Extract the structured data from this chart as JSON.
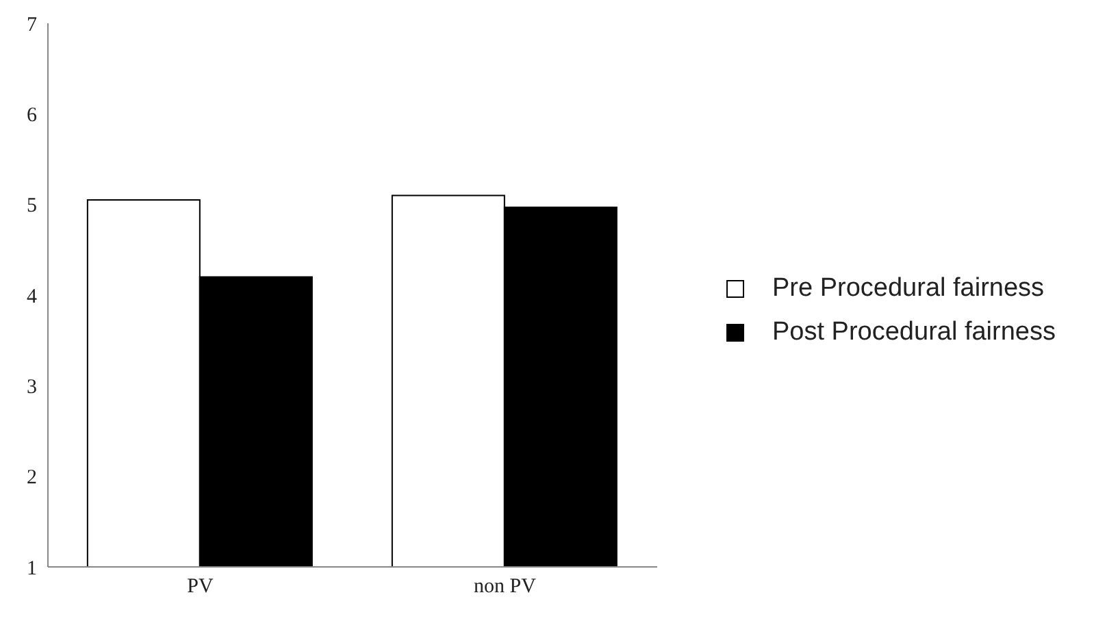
{
  "chart_data": {
    "type": "bar",
    "categories": [
      "PV",
      "non PV"
    ],
    "series": [
      {
        "name": "Pre Procedural fairness",
        "color": "#ffffff",
        "values": [
          5.05,
          5.1
        ]
      },
      {
        "name": "Post Procedural fairness",
        "color": "#000000",
        "values": [
          4.2,
          4.97
        ]
      }
    ],
    "ylim": [
      1,
      7
    ],
    "yticks": [
      1,
      2,
      3,
      4,
      5,
      6,
      7
    ],
    "grid": false,
    "legend": "right"
  }
}
